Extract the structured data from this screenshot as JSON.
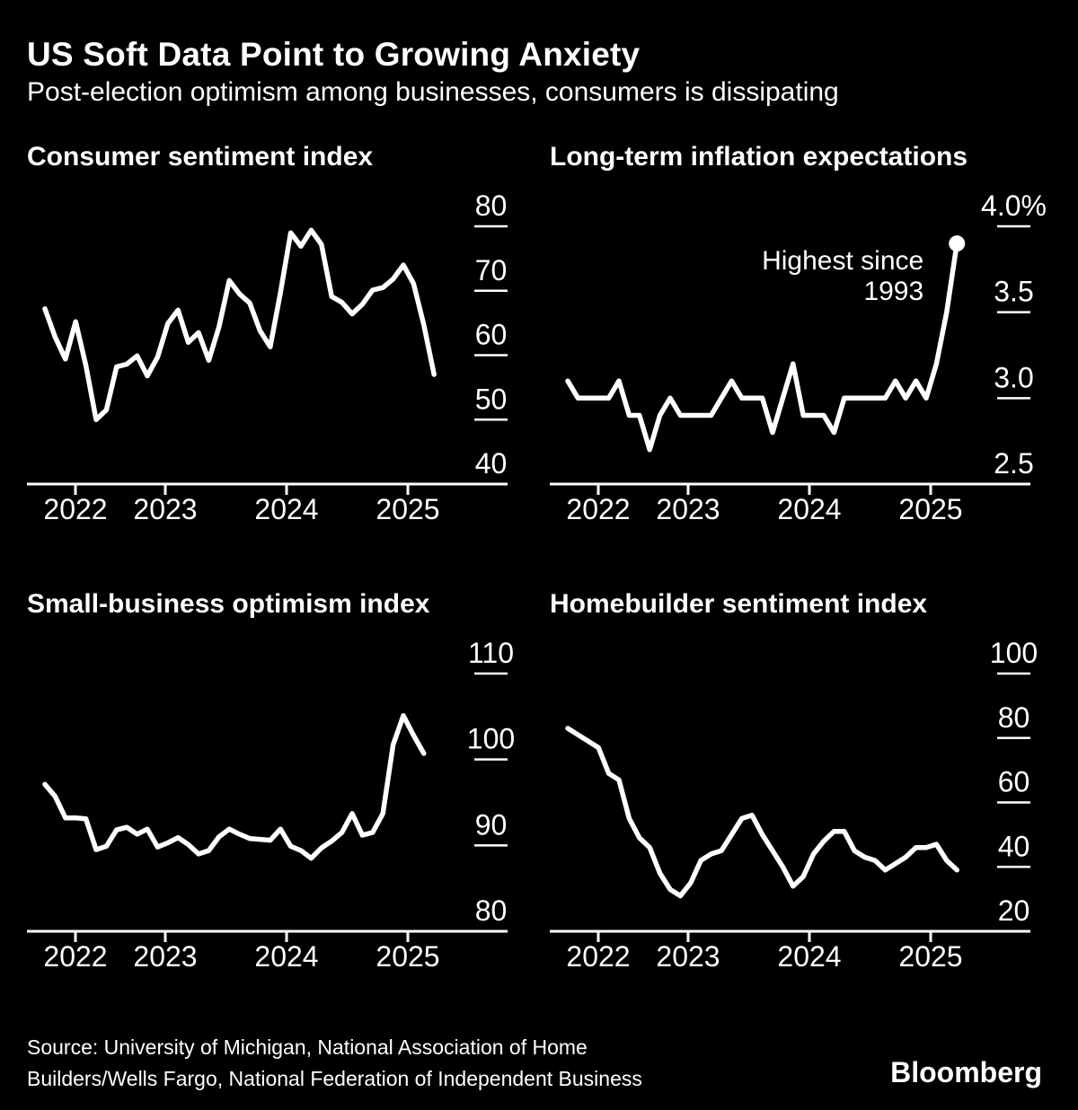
{
  "page": {
    "title": "US Soft Data Point to Growing Anxiety",
    "subtitle": "Post-election optimism among businesses, consumers is dissipating",
    "source_line1": "Source: University of Michigan, National Association of Home",
    "source_line2": "Builders/Wells Fargo, National Federation of Independent Business",
    "brand": "Bloomberg"
  },
  "colors": {
    "background": "#000000",
    "line": "#ffffff",
    "text": "#ffffff"
  },
  "chart_data": [
    {
      "type": "line",
      "title": "Consumer sentiment index",
      "x_start": "2022-01",
      "x_end": "2025-03",
      "points_per_year": 12,
      "x_tick_labels": [
        "2022",
        "2023",
        "2024",
        "2025"
      ],
      "y_axis": {
        "ticks": [
          {
            "label": "80",
            "value": 80
          },
          {
            "label": "70",
            "value": 70
          },
          {
            "label": "60",
            "value": 60
          },
          {
            "label": "50",
            "value": 50
          },
          {
            "label": "40",
            "value": 40
          }
        ]
      },
      "values": [
        67.2,
        62.8,
        59.4,
        65.2,
        58.4,
        50.0,
        51.5,
        58.2,
        58.6,
        59.9,
        56.8,
        59.7,
        64.9,
        67.0,
        62.0,
        63.5,
        59.2,
        64.4,
        71.6,
        69.5,
        68.1,
        63.8,
        61.3,
        69.7,
        79.0,
        76.9,
        79.4,
        77.2,
        69.1,
        68.2,
        66.4,
        67.9,
        70.1,
        70.5,
        71.8,
        74.0,
        71.1,
        64.7,
        57.0
      ]
    },
    {
      "type": "line",
      "title": "Long-term inflation expectations",
      "x_start": "2022-01",
      "x_end": "2025-03",
      "points_per_year": 12,
      "x_tick_labels": [
        "2022",
        "2023",
        "2024",
        "2025"
      ],
      "y_axis": {
        "ticks": [
          {
            "label": "4.0%",
            "value": 4.0
          },
          {
            "label": "3.5",
            "value": 3.5
          },
          {
            "label": "3.0",
            "value": 3.0
          },
          {
            "label": "2.5",
            "value": 2.5
          }
        ]
      },
      "values": [
        3.1,
        3.0,
        3.0,
        3.0,
        3.0,
        3.1,
        2.9,
        2.9,
        2.7,
        2.9,
        3.0,
        2.9,
        2.9,
        2.9,
        2.9,
        3.0,
        3.1,
        3.0,
        3.0,
        3.0,
        2.8,
        3.0,
        3.2,
        2.9,
        2.9,
        2.9,
        2.8,
        3.0,
        3.0,
        3.0,
        3.0,
        3.0,
        3.1,
        3.0,
        3.1,
        3.0,
        3.2,
        3.5,
        3.9
      ],
      "end_dot": true,
      "annotation": {
        "line1": "Highest since",
        "line2": "1993"
      }
    },
    {
      "type": "line",
      "title": "Small-business optimism index",
      "x_start": "2022-01",
      "x_end": "2025-02",
      "points_per_year": 12,
      "x_tick_labels": [
        "2022",
        "2023",
        "2024",
        "2025"
      ],
      "y_axis": {
        "ticks": [
          {
            "label": "110",
            "value": 110
          },
          {
            "label": "100",
            "value": 100
          },
          {
            "label": "90",
            "value": 90
          },
          {
            "label": "80",
            "value": 80
          }
        ]
      },
      "values": [
        97.1,
        95.7,
        93.2,
        93.2,
        93.1,
        89.5,
        89.9,
        91.8,
        92.1,
        91.3,
        91.9,
        89.8,
        90.3,
        90.9,
        90.1,
        89.0,
        89.4,
        91.0,
        91.9,
        91.3,
        90.8,
        90.7,
        90.6,
        91.9,
        89.9,
        89.4,
        88.5,
        89.7,
        90.5,
        91.5,
        93.7,
        91.2,
        91.5,
        93.7,
        101.7,
        105.1,
        102.8,
        100.7
      ]
    },
    {
      "type": "line",
      "title": "Homebuilder sentiment index",
      "x_start": "2022-01",
      "x_end": "2025-03",
      "points_per_year": 12,
      "x_tick_labels": [
        "2022",
        "2023",
        "2024",
        "2025"
      ],
      "y_axis": {
        "ticks": [
          {
            "label": "100",
            "value": 100
          },
          {
            "label": "80",
            "value": 80
          },
          {
            "label": "60",
            "value": 60
          },
          {
            "label": "40",
            "value": 40
          },
          {
            "label": "20",
            "value": 20
          }
        ]
      },
      "values": [
        83,
        81,
        79,
        77,
        69,
        67,
        55,
        49,
        46,
        38,
        33,
        31,
        35,
        42,
        44,
        45,
        50,
        55,
        56,
        50,
        45,
        40,
        34,
        37,
        44,
        48,
        51,
        51,
        45,
        43,
        42,
        39,
        41,
        43,
        46,
        46,
        47,
        42,
        39
      ]
    }
  ]
}
